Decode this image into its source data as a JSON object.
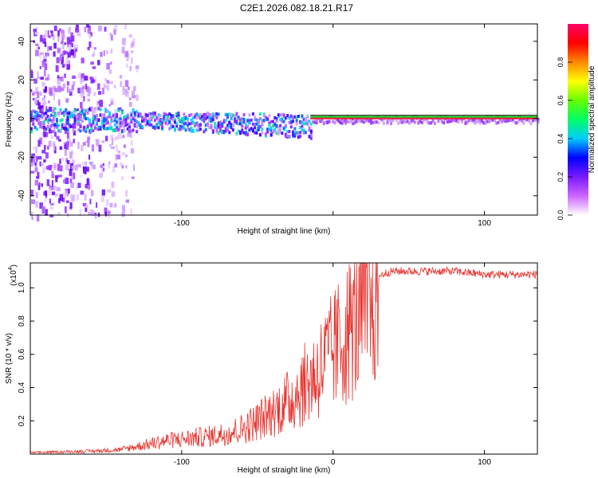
{
  "title": "C2E1.2026.082.18.21.R17",
  "colors": {
    "snr_line": "#e8332e",
    "axis": "#000000",
    "ridge_red": "#e81e3c",
    "ridge_green": "#22cc22"
  },
  "chart_data": [
    {
      "type": "heatmap",
      "name": "spectrogram",
      "xlabel": "Height of straight line (km)",
      "ylabel": "Frequency (Hz)",
      "xlim": [
        -200,
        135
      ],
      "ylim": [
        -50,
        49
      ],
      "x_ticks": [
        -100,
        0,
        100
      ],
      "x_tick_labels": [
        "-100",
        "",
        "100"
      ],
      "y_ticks": [
        -40,
        -20,
        0,
        20,
        40
      ],
      "y_tick_labels": [
        "-40",
        "-20",
        "0",
        "20",
        "40"
      ],
      "ridge_frequency_hz": 0,
      "noise_region_km": [
        -200,
        -135
      ],
      "colorbar": {
        "label": "Normalized spectral amplitude",
        "range": [
          0,
          1
        ],
        "ticks": [
          0.0,
          0.2,
          0.4,
          0.6,
          0.8
        ],
        "tick_labels": [
          "0.0",
          "0.2",
          "0.4",
          "0.6",
          "0.8"
        ],
        "colors": [
          "#ffffff",
          "#cc66ff",
          "#7a1aff",
          "#0000ff",
          "#00ccff",
          "#00ff66",
          "#66ff00",
          "#ffff00",
          "#ff8800",
          "#ff0000",
          "#ff0066"
        ]
      }
    },
    {
      "type": "line",
      "name": "snr",
      "xlabel": "Height of straight line (km)",
      "ylabel": "SNR (10 * v/v)",
      "y_scale_label": "(x10",
      "y_scale_exponent": "4",
      "y_scale_close": ")",
      "xlim": [
        -200,
        135
      ],
      "ylim": [
        0,
        1.15
      ],
      "x_ticks": [
        -100,
        0,
        100
      ],
      "x_tick_labels": [
        "-100",
        "0",
        "100"
      ],
      "y_ticks": [
        0.2,
        0.4,
        0.6,
        0.8,
        1.0
      ],
      "y_tick_labels": [
        "0.2",
        "0.4",
        "0.6",
        "0.8",
        "1.0"
      ],
      "series": [
        {
          "name": "SNR",
          "x": [
            -200,
            -180,
            -160,
            -140,
            -130,
            -120,
            -110,
            -100,
            -90,
            -80,
            -70,
            -60,
            -50,
            -40,
            -30,
            -25,
            -20,
            -15,
            -10,
            -5,
            0,
            5,
            10,
            15,
            20,
            25,
            30,
            35,
            40,
            50,
            60,
            70,
            80,
            90,
            100,
            110,
            120,
            135
          ],
          "y": [
            0.01,
            0.015,
            0.02,
            0.03,
            0.05,
            0.07,
            0.09,
            0.1,
            0.11,
            0.12,
            0.14,
            0.17,
            0.22,
            0.28,
            0.35,
            0.4,
            0.45,
            0.5,
            0.55,
            0.62,
            0.68,
            0.75,
            0.82,
            0.88,
            0.95,
            1.02,
            1.07,
            1.09,
            1.1,
            1.1,
            1.1,
            1.1,
            1.1,
            1.09,
            1.08,
            1.08,
            1.08,
            1.08
          ]
        }
      ]
    }
  ]
}
